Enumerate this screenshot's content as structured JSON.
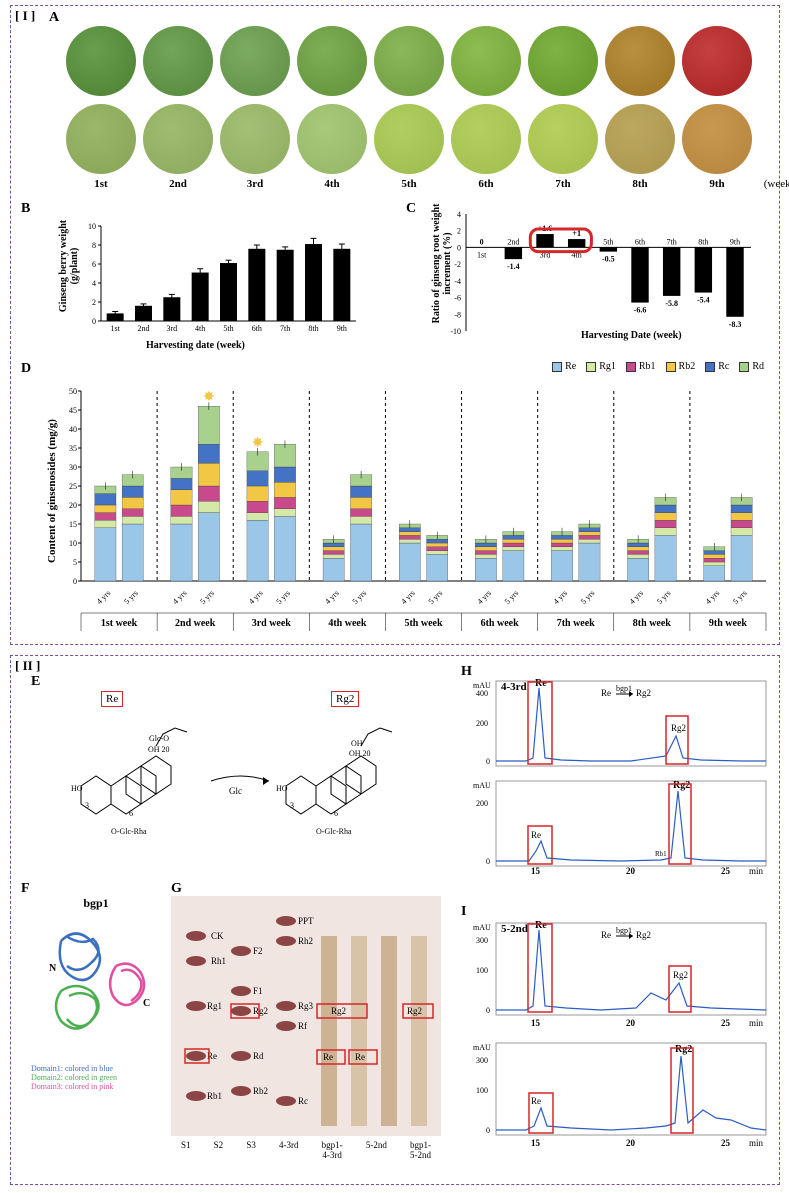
{
  "panel_I_label": "[ I ]",
  "panel_II_label": "[ II ]",
  "sub_labels": {
    "A": "A",
    "B": "B",
    "C": "C",
    "D": "D",
    "E": "E",
    "F": "F",
    "G": "G",
    "H": "H",
    "I": "I"
  },
  "panelA": {
    "weeks": [
      "1st",
      "2nd",
      "3rd",
      "4th",
      "5th",
      "6th",
      "7th",
      "8th",
      "9th"
    ],
    "week_suffix": "(week)",
    "berry_colors": [
      "#6a9e4f",
      "#72a55a",
      "#7cab62",
      "#7eae55",
      "#8bb85a",
      "#8ebd52",
      "#7fb345",
      "#b89040",
      "#c54040"
    ],
    "powder_colors": [
      "#9bb86a",
      "#9fbc70",
      "#a3c075",
      "#a8c97a",
      "#b0cf60",
      "#b4d060",
      "#b8d060",
      "#bda860",
      "#c99850"
    ]
  },
  "chartB": {
    "type": "bar",
    "title": "Harvesting date (week)",
    "ylabel": "Ginseng berry weight\n(g/plant)",
    "categories": [
      "1st",
      "2nd",
      "3rd",
      "4th",
      "5th",
      "6th",
      "7th",
      "8th",
      "9th"
    ],
    "values": [
      0.8,
      1.6,
      2.5,
      5.1,
      6.1,
      7.6,
      7.5,
      8.1,
      7.6
    ],
    "errors": [
      0.2,
      0.2,
      0.3,
      0.4,
      0.3,
      0.4,
      0.3,
      0.6,
      0.5
    ],
    "ylim": [
      0,
      10
    ],
    "ytick_step": 2,
    "bar_color": "#000000",
    "background_color": "#ffffff"
  },
  "chartC": {
    "type": "bar",
    "title": "Harvesting Date (week)",
    "ylabel": "Ratio of ginseng root\nweight increment  (%)",
    "categories": [
      "1st",
      "2nd",
      "3rd",
      "4th",
      "5th",
      "6th",
      "7th",
      "8th",
      "9th"
    ],
    "values": [
      0,
      -1.4,
      1.6,
      1.0,
      -0.5,
      -6.6,
      -5.8,
      -5.4,
      -8.3
    ],
    "value_labels": [
      "0",
      "-1.4",
      "+1.6",
      "+1",
      "-0.5",
      "-6.6",
      "-5.8",
      "-5.4",
      "-8.3"
    ],
    "ylim": [
      -10,
      4
    ],
    "ytick_step": 2,
    "bar_color": "#000000",
    "highlight_box_color": "#d62728",
    "highlight_box_indices": [
      2,
      3
    ]
  },
  "chartD": {
    "type": "stacked-bar",
    "ylabel": "Content of ginsenosides (mg/g)",
    "ylim": [
      0,
      50
    ],
    "ytick_step": 5,
    "weeks": [
      "1st week",
      "2nd week",
      "3rd week",
      "4th week",
      "5th week",
      "6th week",
      "7th week",
      "8th week",
      "9th week"
    ],
    "ages": [
      "4 yrs",
      "5 yrs"
    ],
    "series_order": [
      "Re",
      "Rg1",
      "Rb1",
      "Rb2",
      "Rc",
      "Rd"
    ],
    "colors": {
      "Re": "#9ac6e8",
      "Rg1": "#d6e8a8",
      "Rb1": "#c94a8c",
      "Rb2": "#f2c744",
      "Rc": "#4472c4",
      "Rd": "#a9d18e"
    },
    "data": {
      "1st week": {
        "4 yrs": {
          "Re": 14,
          "Rg1": 2,
          "Rb1": 2,
          "Rb2": 2,
          "Rc": 3,
          "Rd": 2
        },
        "5 yrs": {
          "Re": 15,
          "Rg1": 2,
          "Rb1": 2,
          "Rb2": 3,
          "Rc": 3,
          "Rd": 3
        }
      },
      "2nd week": {
        "4 yrs": {
          "Re": 15,
          "Rg1": 2,
          "Rb1": 3,
          "Rb2": 4,
          "Rc": 3,
          "Rd": 3
        },
        "5 yrs": {
          "Re": 18,
          "Rg1": 3,
          "Rb1": 4,
          "Rb2": 6,
          "Rc": 5,
          "Rd": 10
        }
      },
      "3rd week": {
        "4 yrs": {
          "Re": 16,
          "Rg1": 2,
          "Rb1": 3,
          "Rb2": 4,
          "Rc": 4,
          "Rd": 5
        },
        "5 yrs": {
          "Re": 17,
          "Rg1": 2,
          "Rb1": 3,
          "Rb2": 4,
          "Rc": 4,
          "Rd": 6
        }
      },
      "4th week": {
        "4 yrs": {
          "Re": 6,
          "Rg1": 1,
          "Rb1": 1,
          "Rb2": 1,
          "Rc": 1,
          "Rd": 1
        },
        "5 yrs": {
          "Re": 15,
          "Rg1": 2,
          "Rb1": 2,
          "Rb2": 3,
          "Rc": 3,
          "Rd": 3
        }
      },
      "5th week": {
        "4 yrs": {
          "Re": 10,
          "Rg1": 1,
          "Rb1": 1,
          "Rb2": 1,
          "Rc": 1,
          "Rd": 1
        },
        "5 yrs": {
          "Re": 7,
          "Rg1": 1,
          "Rb1": 1,
          "Rb2": 1,
          "Rc": 1,
          "Rd": 1
        }
      },
      "6th week": {
        "4 yrs": {
          "Re": 6,
          "Rg1": 1,
          "Rb1": 1,
          "Rb2": 1,
          "Rc": 1,
          "Rd": 1
        },
        "5 yrs": {
          "Re": 8,
          "Rg1": 1,
          "Rb1": 1,
          "Rb2": 1,
          "Rc": 1,
          "Rd": 1
        }
      },
      "7th week": {
        "4 yrs": {
          "Re": 8,
          "Rg1": 1,
          "Rb1": 1,
          "Rb2": 1,
          "Rc": 1,
          "Rd": 1
        },
        "5 yrs": {
          "Re": 10,
          "Rg1": 1,
          "Rb1": 1,
          "Rb2": 1,
          "Rc": 1,
          "Rd": 1
        }
      },
      "8th week": {
        "4 yrs": {
          "Re": 6,
          "Rg1": 1,
          "Rb1": 1,
          "Rb2": 1,
          "Rc": 1,
          "Rd": 1
        },
        "5 yrs": {
          "Re": 12,
          "Rg1": 2,
          "Rb1": 2,
          "Rb2": 2,
          "Rc": 2,
          "Rd": 2
        }
      },
      "9th week": {
        "4 yrs": {
          "Re": 4,
          "Rg1": 1,
          "Rb1": 1,
          "Rb2": 1,
          "Rc": 1,
          "Rd": 1
        },
        "5 yrs": {
          "Re": 12,
          "Rg1": 2,
          "Rb1": 2,
          "Rb2": 2,
          "Rc": 2,
          "Rd": 2
        }
      }
    },
    "star_positions": [
      [
        "2nd week",
        "5 yrs"
      ],
      [
        "3rd week",
        "4 yrs"
      ]
    ],
    "star_color": "#f2c744"
  },
  "panelE": {
    "left_label": "Re",
    "right_label": "Rg2",
    "arrow_label": "Glc",
    "struct_text": [
      "Glc-O",
      "OH 20",
      "OH",
      "3",
      "6",
      "O-Glc-Rha",
      "HO"
    ],
    "box_color": "#d62728"
  },
  "panelF": {
    "title": "bgp1",
    "domain1_color": "#3b6fbf",
    "domain2_color": "#4caf50",
    "domain3_color": "#e04fa0",
    "labels": [
      "N",
      "C"
    ],
    "legend_lines": [
      "Domain1: colored in blue",
      "Domain2: colored in green",
      "Domain3: colored in pink"
    ]
  },
  "panelG": {
    "lanes": [
      "S1",
      "S2",
      "S3",
      "4-3rd",
      "bgp1-\n4-3rd",
      "5-2nd",
      "bgp1-\n5-2nd"
    ],
    "spots": [
      "CK",
      "Rh1",
      "F2",
      "PPT",
      "Rh2",
      "Rg1",
      "F1",
      "Rg2",
      "Rg3",
      "Rf",
      "Re",
      "Rd",
      "Rb1",
      "Rb2",
      "Rc"
    ],
    "highlight_spots": [
      "Rg2",
      "Re"
    ],
    "box_color": "#d62728",
    "bg_color": "#f0e0d8"
  },
  "panelH": {
    "sample": "4-3rd",
    "xlabel": "min",
    "xlim": [
      13,
      27
    ],
    "xtick_step": 5,
    "ylabel": "mAU",
    "ylim_top": [
      0,
      500
    ],
    "ylim_bot": [
      0,
      400
    ],
    "annotation": "Re  bgp1  Rg2",
    "arrow_right": "→",
    "peak_labels": [
      "Re",
      "Rg2",
      "Rb1"
    ],
    "trace_color": "#2b5cc4",
    "box_color": "#d62728"
  },
  "panelI": {
    "sample": "5-2nd",
    "xlabel": "min",
    "xlim": [
      13,
      27
    ],
    "xtick_step": 5,
    "ylabel": "mAU",
    "ylim_top": [
      0,
      400
    ],
    "ylim_bot": [
      0,
      400
    ],
    "annotation": "Re  bgp1  Rg2",
    "arrow_right": "→",
    "peak_labels": [
      "Re",
      "Rg2"
    ],
    "trace_color": "#2b5cc4",
    "box_color": "#d62728"
  }
}
